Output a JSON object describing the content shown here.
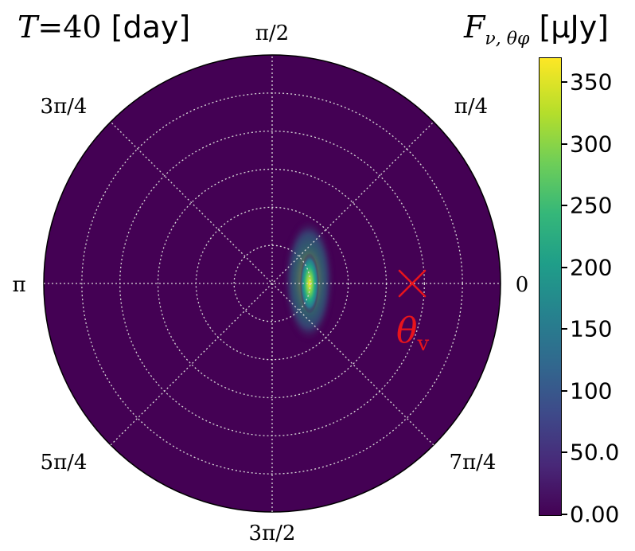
{
  "title": {
    "variable": "T",
    "equals": "=",
    "value": "40",
    "unit": "[day]"
  },
  "colorbar": {
    "label_symbol": "F",
    "label_subscript": "ν, θφ",
    "label_unit": "[μJy]",
    "colormap": "viridis",
    "range": [
      0,
      370
    ],
    "ticks": [
      {
        "value": 0,
        "label": "0.00"
      },
      {
        "value": 50,
        "label": "50.0"
      },
      {
        "value": 100,
        "label": "100"
      },
      {
        "value": 150,
        "label": "150"
      },
      {
        "value": 200,
        "label": "200"
      },
      {
        "value": 250,
        "label": "250"
      },
      {
        "value": 300,
        "label": "300"
      },
      {
        "value": 350,
        "label": "350"
      }
    ]
  },
  "angles": {
    "a0": "0",
    "a45": "π/4",
    "a90": "π/2",
    "a135": "3π/4",
    "a180": "π",
    "a225": "5π/4",
    "a270": "3π/2",
    "a315": "7π/4"
  },
  "marker": {
    "symbol": "θ",
    "subscript": "v",
    "color": "#e8141c"
  },
  "chart_data": {
    "type": "heatmap",
    "projection": "polar",
    "title": "T = 40 [day]",
    "colorbar_label": "F_ν,θφ [μJy]",
    "theta_ticks": [
      "0",
      "π/4",
      "π/2",
      "3π/4",
      "π",
      "5π/4",
      "3π/2",
      "7π/4"
    ],
    "radial_gridlines": 6,
    "grid": true,
    "background_value": 0,
    "peak": {
      "value": 370,
      "theta": 0,
      "r_fraction": 0.17
    },
    "observer_marker": {
      "label": "θv",
      "theta": 0,
      "r_fraction": 0.6
    }
  }
}
